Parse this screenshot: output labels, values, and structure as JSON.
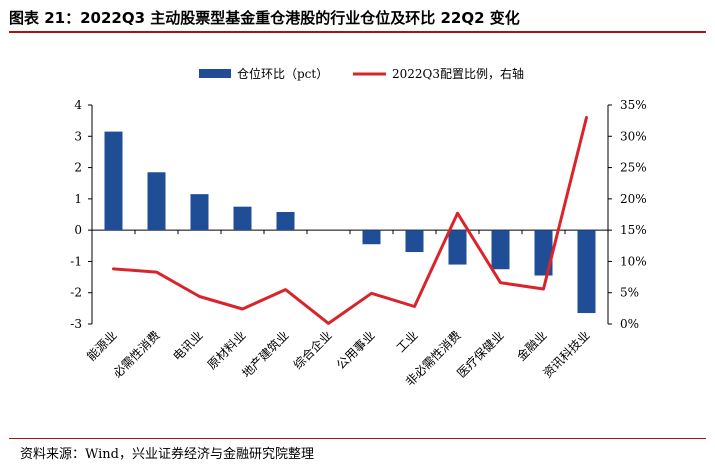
{
  "title": "图表 21：2022Q3 主动股票型基金重仓港股的行业仓位及环比 22Q2 变化",
  "source": "资料来源：Wind，兴业证券经济与金融研究院整理",
  "colors": {
    "bar": "#1f4e96",
    "line": "#d9242b",
    "accent": "#a0141a"
  },
  "chart_data": {
    "type": "bar",
    "categories": [
      "能源业",
      "必需性消费",
      "电讯业",
      "原材料业",
      "地产建筑业",
      "综合企业",
      "公用事业",
      "工业",
      "非必需性消费",
      "医疗保健业",
      "金融业",
      "资讯科技业"
    ],
    "series": [
      {
        "name": "仓位环比（pct）",
        "type": "bar",
        "axis": "left",
        "values": [
          3.15,
          1.85,
          1.15,
          0.75,
          0.58,
          0.0,
          -0.45,
          -0.7,
          -1.1,
          -1.25,
          -1.45,
          -2.65
        ]
      },
      {
        "name": "2022Q3配置比例，右轴",
        "type": "line",
        "axis": "right",
        "values": [
          8.8,
          8.3,
          4.4,
          2.4,
          5.5,
          0.1,
          4.9,
          2.8,
          17.7,
          6.6,
          5.6,
          33.0
        ]
      }
    ],
    "ylim": [
      -3,
      4
    ],
    "yticks": [
      "-3",
      "-2",
      "-1",
      "0",
      "1",
      "2",
      "3",
      "4"
    ],
    "y2lim": [
      0,
      35
    ],
    "y2ticks": [
      "0%",
      "5%",
      "10%",
      "15%",
      "20%",
      "25%",
      "30%",
      "35%"
    ],
    "legend_position": "top",
    "grid": false
  }
}
